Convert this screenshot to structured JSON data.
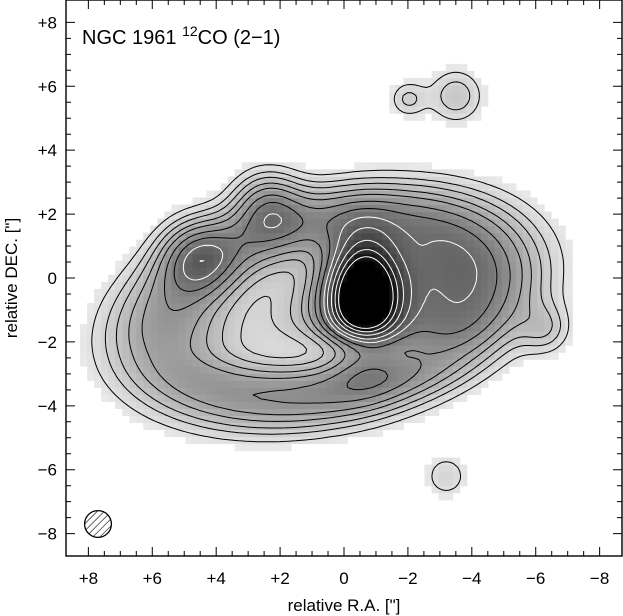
{
  "chart_data": {
    "type": "heatmap",
    "title": {
      "prefix": "NGC 1961 ",
      "isotope": "12",
      "species": "CO (2−1)"
    },
    "xlabel": "relative R.A. [\"]",
    "ylabel": "relative DEC. [\"]",
    "xlim": [
      8.7,
      -8.7
    ],
    "ylim": [
      -8.7,
      8.7
    ],
    "x_axis_reversed": true,
    "x_ticks": [
      8,
      6,
      4,
      2,
      0,
      -2,
      -4,
      -6,
      -8
    ],
    "x_tick_labels": [
      "+8",
      "+6",
      "+4",
      "+2",
      "0",
      "−2",
      "−4",
      "−6",
      "−8"
    ],
    "y_ticks": [
      8,
      6,
      4,
      2,
      0,
      -2,
      -4,
      -6,
      -8
    ],
    "y_tick_labels": [
      "+8",
      "+6",
      "+4",
      "+2",
      "0",
      "−2",
      "−4",
      "−6",
      "−8"
    ],
    "grid": false,
    "colormap": "grayscale",
    "contour_color_outer": "#000000",
    "contour_color_inner": "#ffffff",
    "beam": {
      "x": 7.7,
      "y": -7.7,
      "radius": 0.42,
      "hatched": true
    },
    "emission": {
      "peak": {
        "x": -0.7,
        "y": -1.0,
        "intensity": 1.0
      },
      "nucleus": {
        "x": -0.6,
        "y": -0.6,
        "sigma_x": 0.75,
        "sigma_y": 1.2,
        "amplitude": 1.0
      },
      "bar": {
        "x": -1.3,
        "y": -0.6,
        "sigma_x": 2.3,
        "sigma_y": 1.35,
        "angle_deg": -20,
        "amplitude": 0.42
      },
      "ring": {
        "x": 0.6,
        "y": -0.9,
        "radius_x": 5.0,
        "radius_y": 2.7,
        "angle_deg": -12,
        "width": 0.75,
        "amplitude": 0.36
      },
      "knots": [
        {
          "x": 2.4,
          "y": 2.3,
          "sigma": 0.75,
          "amplitude": 0.28
        },
        {
          "x": 4.6,
          "y": 0.7,
          "sigma": 0.8,
          "amplitude": 0.28
        },
        {
          "x": -3.5,
          "y": 5.7,
          "sigma": 0.6,
          "amplitude": 0.17
        },
        {
          "x": -2.0,
          "y": 5.6,
          "sigma": 0.4,
          "amplitude": 0.14
        },
        {
          "x": -6.3,
          "y": -1.6,
          "sigma": 0.55,
          "amplitude": 0.14
        },
        {
          "x": -3.2,
          "y": -6.2,
          "sigma": 0.5,
          "amplitude": 0.12
        }
      ],
      "gap": {
        "x": 0.6,
        "y": -2.3,
        "sigma_x": 2.5,
        "sigma_y": 0.5,
        "depth": 0.5
      }
    },
    "contour_levels": [
      0.08,
      0.13,
      0.18,
      0.24,
      0.3,
      0.38,
      0.46,
      0.54,
      0.62,
      0.72,
      0.82,
      0.92
    ]
  }
}
